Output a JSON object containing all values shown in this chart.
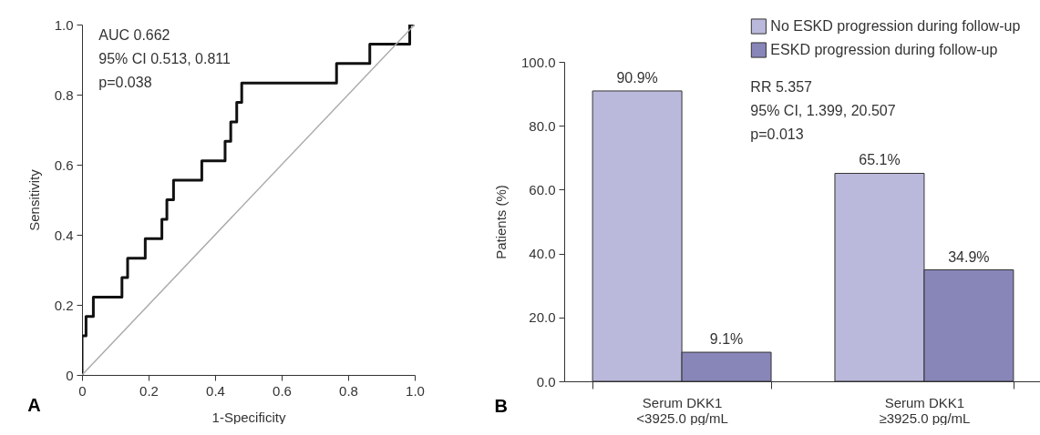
{
  "chart_data": [
    {
      "type": "step",
      "title": "A",
      "xlabel": "1-Specificity",
      "ylabel": "Sensitivity",
      "xlim": [
        0,
        1
      ],
      "ylim": [
        0,
        1
      ],
      "xticks": [
        0,
        0.2,
        0.4,
        0.6,
        0.8,
        {
          "value": 1,
          "label": "1.0"
        }
      ],
      "yticks": [
        0,
        0.2,
        0.4,
        0.6,
        0.8,
        {
          "value": 1,
          "label": "1.0"
        }
      ],
      "annotations": [
        "AUC 0.662",
        "95% CI 0.513, 0.811",
        "p=0.038"
      ],
      "series": [
        {
          "type": "step",
          "color": "#111111",
          "x": [
            0,
            0,
            0.012,
            0.034,
            0.12,
            0.137,
            0.19,
            0.24,
            0.255,
            0.275,
            0.36,
            0.43,
            0.447,
            0.465,
            0.48,
            0.765,
            0.865,
            0.985,
            1
          ],
          "values": [
            0,
            0.112,
            0.167,
            0.222,
            0.278,
            0.333,
            0.389,
            0.444,
            0.5,
            0.556,
            0.611,
            0.667,
            0.722,
            0.778,
            0.833,
            0.889,
            0.944,
            1,
            1
          ]
        },
        {
          "type": "line",
          "color": "#aaaaaa",
          "x": [
            0,
            1
          ],
          "values": [
            0,
            1
          ]
        }
      ]
    },
    {
      "type": "bar",
      "title": "B",
      "ylabel": "Patients (%)",
      "categories": [
        "Serum DKK1\n<3925.0 pg/mL",
        "Serum DKK1\n≥3925.0 pg/mL"
      ],
      "ylim": [
        0,
        100
      ],
      "yticks": [
        {
          "value": 0,
          "label": "0.0"
        },
        {
          "value": 20,
          "label": "20.0"
        },
        {
          "value": 40,
          "label": "40.0"
        },
        {
          "value": 60,
          "label": "60.0"
        },
        {
          "value": 80,
          "label": "80.0"
        },
        {
          "value": 100,
          "label": "100.0"
        }
      ],
      "legend": "top right",
      "annotations": [
        "RR 5.357",
        "95% CI, 1.399, 20.507",
        "p=0.013"
      ],
      "series": [
        {
          "name": "No ESKD progression during follow-up",
          "color": "#bab9db",
          "values": [
            90.9,
            65.1
          ],
          "value_labels": [
            "90.9%",
            "65.1%"
          ]
        },
        {
          "name": "ESKD progression during follow-up",
          "color": "#8886b9",
          "values": [
            9.1,
            34.9
          ],
          "value_labels": [
            "9.1%",
            "34.9%"
          ]
        }
      ]
    }
  ]
}
